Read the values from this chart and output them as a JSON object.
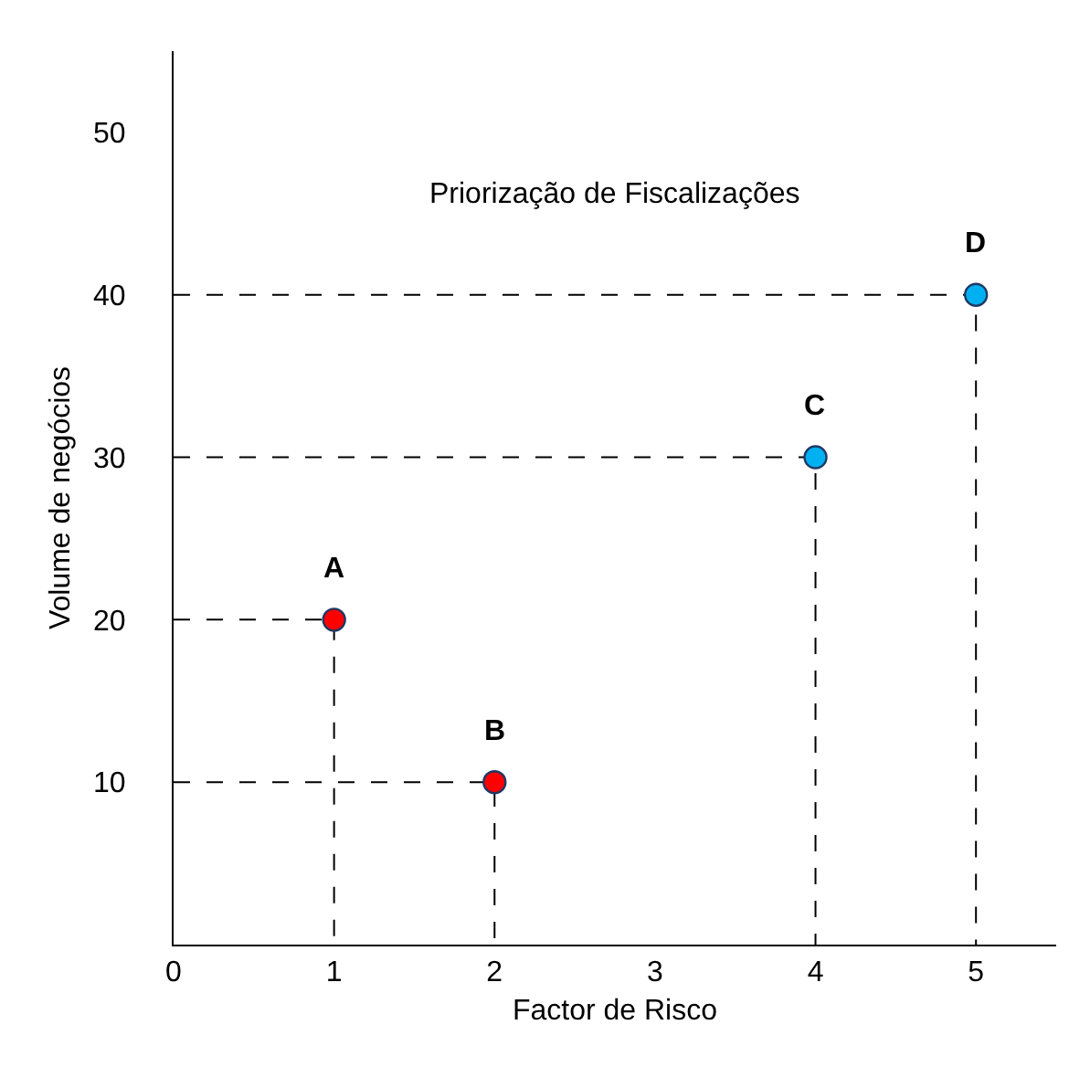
{
  "chart_data": {
    "type": "scatter",
    "title": "Priorização de Fiscalizações",
    "xlabel": "Factor de Risco",
    "ylabel": "Volume de negócios",
    "xlim": [
      0,
      5.5
    ],
    "xticks": [
      0,
      1,
      2,
      3,
      4,
      5
    ],
    "ylim": [
      0,
      55
    ],
    "yticks": [
      10,
      20,
      30,
      40,
      50
    ],
    "grid": false,
    "marker": "circle",
    "series": [
      {
        "type": "line",
        "x": [
          0,
          1,
          1
        ],
        "values": [
          20,
          20,
          0
        ],
        "color": "#000000",
        "line_style": "dashed",
        "marker": "none"
      },
      {
        "type": "line",
        "x": [
          0,
          2,
          2
        ],
        "values": [
          10,
          10,
          0
        ],
        "color": "#000000",
        "line_style": "dashed",
        "marker": "none"
      },
      {
        "type": "line",
        "x": [
          0,
          4,
          4
        ],
        "values": [
          30,
          30,
          0
        ],
        "color": "#000000",
        "line_style": "dashed",
        "marker": "none"
      },
      {
        "type": "line",
        "x": [
          0,
          5,
          5
        ],
        "values": [
          40,
          40,
          0
        ],
        "color": "#000000",
        "line_style": "dashed",
        "marker": "none"
      },
      {
        "x": [
          1,
          2,
          4,
          5
        ],
        "values": [
          20,
          10,
          30,
          40
        ],
        "colors": [
          "#ff0000",
          "#ff0000",
          "#00b0f0",
          "#00b0f0"
        ]
      }
    ],
    "annotations": [
      {
        "text": "A",
        "x": 1,
        "y": 20
      },
      {
        "text": "B",
        "x": 2,
        "y": 10
      },
      {
        "text": "C",
        "x": 4,
        "y": 30
      },
      {
        "text": "D",
        "x": 5,
        "y": 40
      }
    ]
  }
}
